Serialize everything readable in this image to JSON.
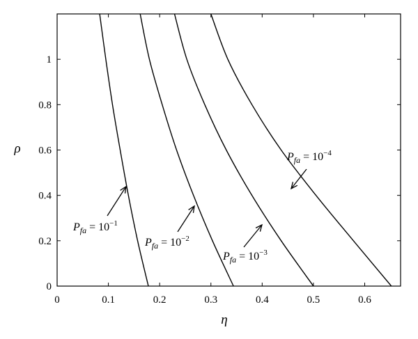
{
  "chart_data": {
    "type": "line",
    "xlabel": "η",
    "ylabel": "ρ",
    "xlim": [
      0,
      0.67
    ],
    "ylim": [
      0,
      1.2
    ],
    "xticks": [
      "0",
      "0.1",
      "0.2",
      "0.3",
      "0.4",
      "0.5",
      "0.6"
    ],
    "yticks": [
      "0",
      "0.2",
      "0.4",
      "0.6",
      "0.8",
      "1"
    ],
    "grid": false,
    "series": [
      {
        "name": "P_fa = 10^-1",
        "label": {
          "base": "P",
          "sub": "fa",
          "eq": " = 10",
          "sup": "−1"
        },
        "x": [
          0.083,
          0.095,
          0.108,
          0.123,
          0.139,
          0.157,
          0.178
        ],
        "y": [
          1.2,
          1.0,
          0.8,
          0.6,
          0.4,
          0.2,
          0.0
        ]
      },
      {
        "name": "P_fa = 10^-2",
        "label": {
          "base": "P",
          "sub": "fa",
          "eq": " = 10",
          "sup": "−2"
        },
        "x": [
          0.162,
          0.18,
          0.205,
          0.233,
          0.266,
          0.303,
          0.344
        ],
        "y": [
          1.2,
          1.0,
          0.8,
          0.6,
          0.4,
          0.2,
          0.0
        ]
      },
      {
        "name": "P_fa = 10^-3",
        "label": {
          "base": "P",
          "sub": "fa",
          "eq": " = 10",
          "sup": "−3"
        },
        "x": [
          0.229,
          0.253,
          0.288,
          0.33,
          0.38,
          0.437,
          0.5
        ],
        "y": [
          1.2,
          1.0,
          0.8,
          0.6,
          0.4,
          0.2,
          0.0
        ]
      },
      {
        "name": "P_fa = 10^-4",
        "label": {
          "base": "P",
          "sub": "fa",
          "eq": " = 10",
          "sup": "−4"
        },
        "x": [
          0.3,
          0.333,
          0.38,
          0.437,
          0.505,
          0.578,
          0.652
        ],
        "y": [
          1.2,
          1.0,
          0.8,
          0.6,
          0.4,
          0.2,
          0.0
        ]
      }
    ]
  }
}
